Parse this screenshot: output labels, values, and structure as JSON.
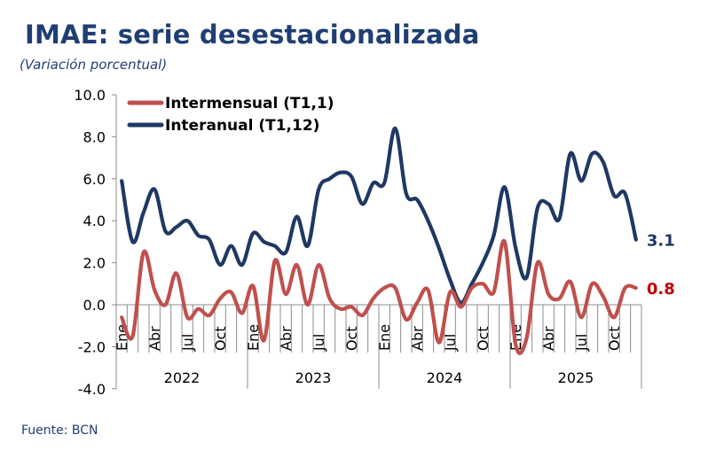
{
  "header": {
    "title": "IMAE: serie desestacionalizada",
    "subtitle": "(Variación porcentual)"
  },
  "footer": {
    "source": "Fuente: BCN"
  },
  "chart_data": {
    "type": "line",
    "title": "IMAE: serie desestacionalizada",
    "subtitle": "(Variación porcentual)",
    "xlabel": "",
    "ylabel": "",
    "ylim": [
      -4.0,
      10.0
    ],
    "yticks": [
      "10.0",
      "8.0",
      "6.0",
      "4.0",
      "2.0",
      "0.0",
      "-2.0",
      "-4.0"
    ],
    "ytick_values": [
      10,
      8,
      6,
      4,
      2,
      0,
      -2,
      -4
    ],
    "years": [
      "2022",
      "2023",
      "2024",
      "2025"
    ],
    "month_labels": [
      "Ene",
      "",
      "",
      "Abr",
      "",
      "",
      "Jul",
      "",
      "",
      "Oct",
      "",
      ""
    ],
    "legend_position": "top-left",
    "grid": false,
    "colors": {
      "intermensual": "#c0504d",
      "interanual": "#1f3864",
      "intermensual_label": "#c00000",
      "interanual_label": "#1f3864"
    },
    "series": [
      {
        "name": "Intermensual (T1,1)",
        "key": "intermensual",
        "values": [
          -0.6,
          -1.5,
          2.5,
          0.7,
          0.0,
          1.5,
          -0.6,
          -0.2,
          -0.5,
          0.3,
          0.6,
          -0.4,
          0.9,
          -1.7,
          2.1,
          0.5,
          1.9,
          0.0,
          1.9,
          0.3,
          -0.2,
          -0.1,
          -0.5,
          0.3,
          0.8,
          0.8,
          -0.7,
          0.1,
          0.7,
          -1.8,
          0.6,
          -0.1,
          0.8,
          1.0,
          0.6,
          3.0,
          -1.9,
          -1.6,
          2.0,
          0.5,
          0.3,
          1.1,
          -0.6,
          1.0,
          0.4,
          -0.6,
          0.8,
          0.8
        ],
        "end_label": "0.8"
      },
      {
        "name": "Interanual (T1,12)",
        "key": "interanual",
        "values": [
          5.9,
          3.0,
          4.4,
          5.5,
          3.5,
          3.7,
          4.0,
          3.3,
          3.1,
          1.9,
          2.8,
          1.9,
          3.4,
          3.0,
          2.8,
          2.5,
          4.2,
          2.8,
          5.5,
          6.0,
          6.3,
          6.1,
          4.8,
          5.8,
          5.8,
          8.4,
          5.3,
          5.0,
          4.0,
          2.7,
          1.2,
          0.1,
          1.0,
          2.0,
          3.3,
          5.6,
          2.7,
          1.3,
          4.6,
          4.8,
          4.1,
          7.2,
          5.9,
          7.2,
          6.8,
          5.2,
          5.3,
          3.1
        ],
        "end_label": "3.1"
      }
    ]
  }
}
